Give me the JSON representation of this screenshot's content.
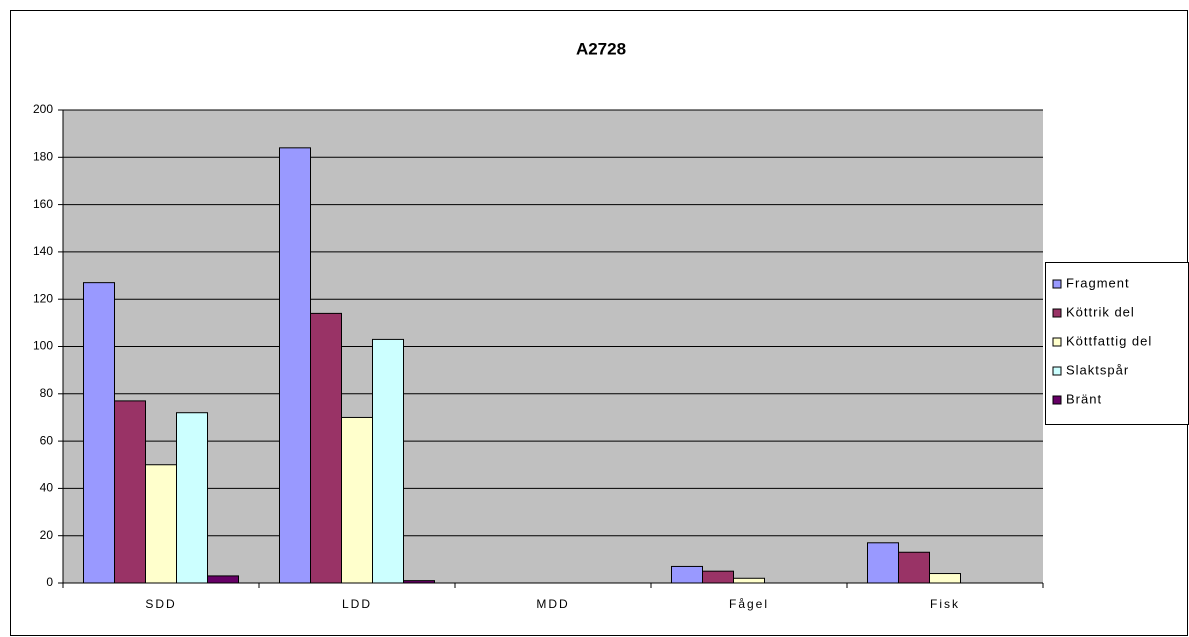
{
  "chart_data": {
    "type": "bar",
    "title": "A2728",
    "categories": [
      "SDD",
      "LDD",
      "MDD",
      "Fågel",
      "Fisk"
    ],
    "series": [
      {
        "name": "Fragment",
        "color": "#9999ff",
        "values": [
          127,
          184,
          0,
          7,
          17
        ]
      },
      {
        "name": "Köttrik del",
        "color": "#993366",
        "values": [
          77,
          114,
          0,
          5,
          13
        ]
      },
      {
        "name": "Köttfattig del",
        "color": "#ffffcc",
        "values": [
          50,
          70,
          0,
          2,
          4
        ]
      },
      {
        "name": "Slaktspår",
        "color": "#ccffff",
        "values": [
          72,
          103,
          0,
          0,
          0
        ]
      },
      {
        "name": "Bränt",
        "color": "#660066",
        "values": [
          3,
          1,
          0,
          0,
          0
        ]
      }
    ],
    "ylim": [
      0,
      200
    ],
    "yticks": [
      0,
      20,
      40,
      60,
      80,
      100,
      120,
      140,
      160,
      180,
      200
    ],
    "grid": true,
    "legend": "right"
  }
}
